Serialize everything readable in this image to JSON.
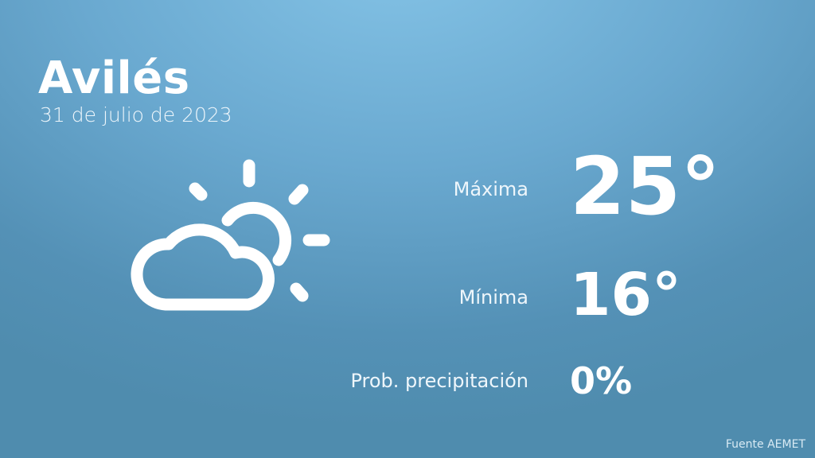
{
  "city": "Avilés",
  "date": "31 de julio de 2023",
  "weather_icon": "partly-cloudy-icon",
  "stats": [
    {
      "label": "Máxima",
      "value": "25°"
    },
    {
      "label": "Mínima",
      "value": "16°"
    },
    {
      "label": "Prob. precipitación",
      "value": "0%"
    }
  ],
  "source": "Fuente AEMET"
}
